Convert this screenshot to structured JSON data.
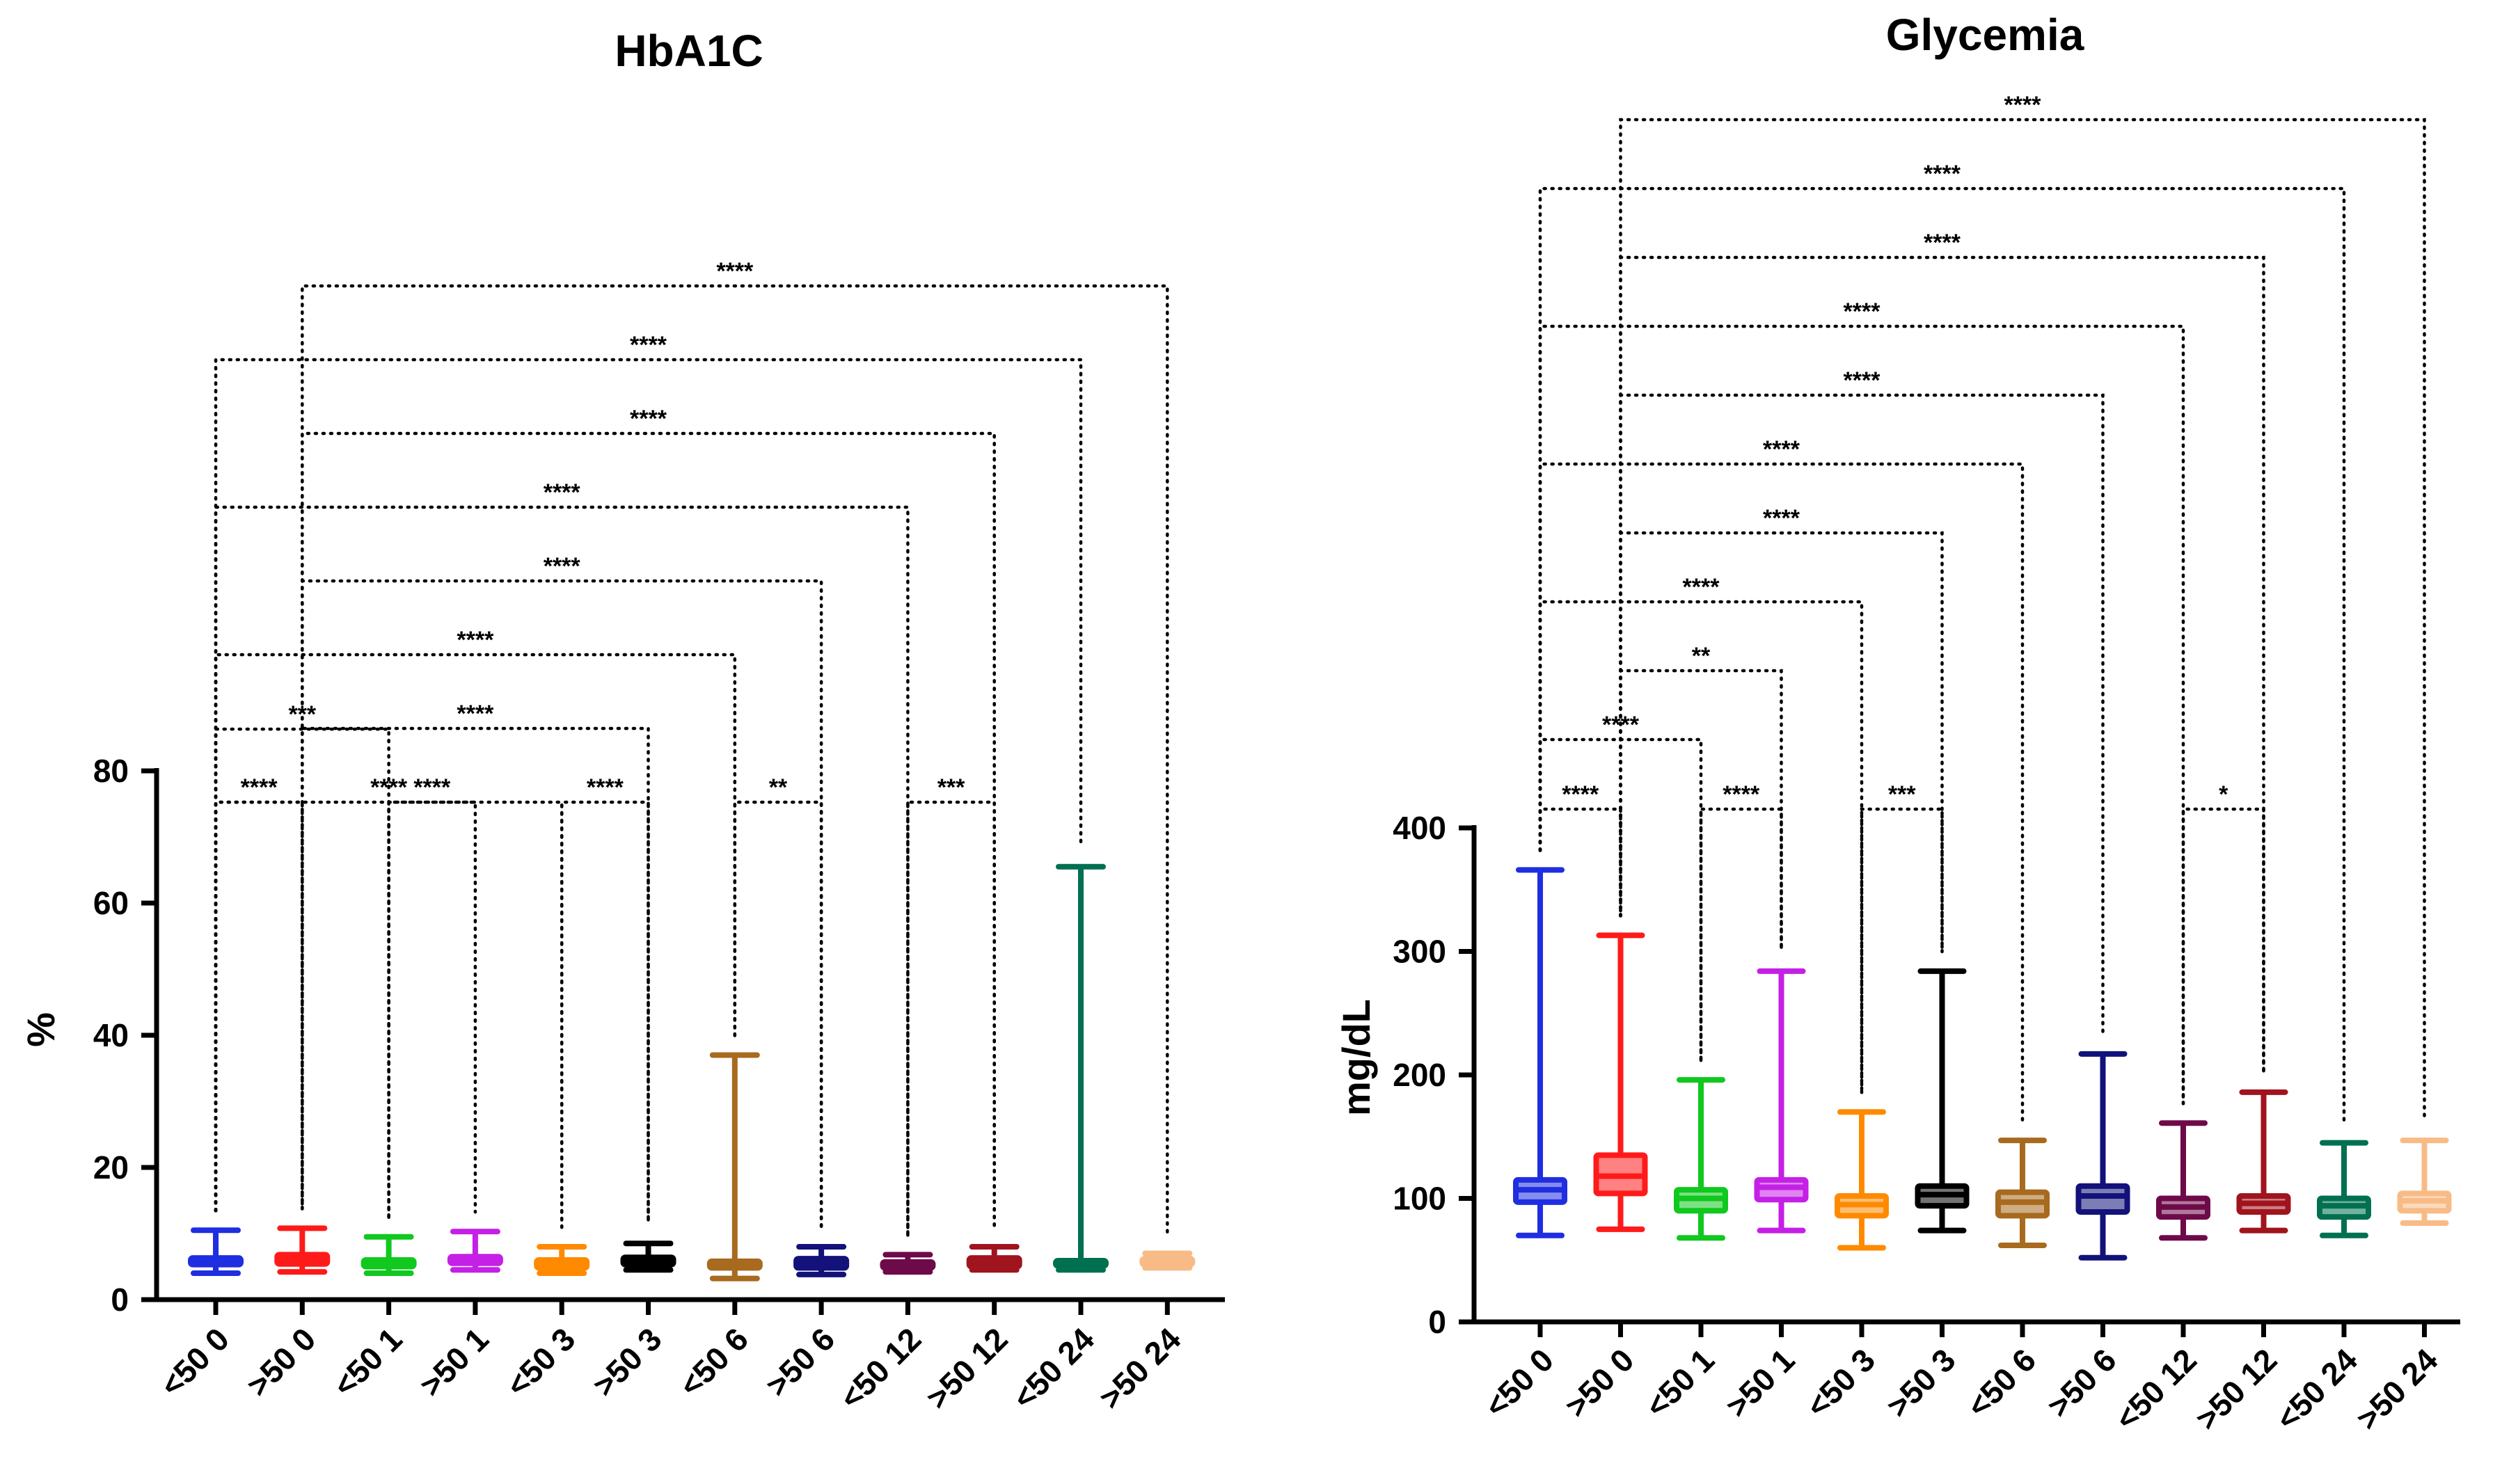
{
  "chart_data": [
    {
      "type": "boxplot",
      "title": "HbA1C",
      "ylabel": "%",
      "xlabel": "",
      "ylim": [
        0,
        80
      ],
      "yticks": [
        0,
        20,
        40,
        60,
        80
      ],
      "categories": [
        "<50 0",
        ">50 0",
        "<50 1",
        ">50 1",
        "<50 3",
        ">50 3",
        "<50 6",
        ">50 6",
        "<50 12",
        ">50 12",
        "<50 24",
        ">50 24"
      ],
      "colors": [
        "#1f2ee0",
        "#ff1a1a",
        "#10c81e",
        "#c420e6",
        "#ff8a00",
        "#000000",
        "#a86a1e",
        "#12127a",
        "#6e0a4a",
        "#a0141e",
        "#007050",
        "#f8bb86"
      ],
      "boxes": [
        {
          "min": 4.0,
          "q1": 5.3,
          "median": 5.8,
          "q3": 6.3,
          "max": 10.5
        },
        {
          "min": 4.2,
          "q1": 5.4,
          "median": 6.0,
          "q3": 6.8,
          "max": 10.8
        },
        {
          "min": 4.0,
          "q1": 5.0,
          "median": 5.4,
          "q3": 6.0,
          "max": 9.5
        },
        {
          "min": 4.5,
          "q1": 5.5,
          "median": 6.0,
          "q3": 6.5,
          "max": 10.3
        },
        {
          "min": 4.0,
          "q1": 4.8,
          "median": 5.3,
          "q3": 6.0,
          "max": 8.0
        },
        {
          "min": 4.5,
          "q1": 5.3,
          "median": 5.8,
          "q3": 6.4,
          "max": 8.5
        },
        {
          "min": 3.2,
          "q1": 4.8,
          "median": 5.3,
          "q3": 5.8,
          "max": 37.0
        },
        {
          "min": 3.8,
          "q1": 4.8,
          "median": 5.4,
          "q3": 6.2,
          "max": 8.0
        },
        {
          "min": 4.2,
          "q1": 4.8,
          "median": 5.1,
          "q3": 5.7,
          "max": 6.8
        },
        {
          "min": 4.5,
          "q1": 5.0,
          "median": 5.5,
          "q3": 6.3,
          "max": 8.0
        },
        {
          "min": 4.5,
          "q1": 5.1,
          "median": 5.4,
          "q3": 5.9,
          "max": 65.5
        },
        {
          "min": 4.8,
          "q1": 5.3,
          "median": 5.7,
          "q3": 6.2,
          "max": 7.0
        }
      ],
      "comparisons": [
        {
          "a": 0,
          "b": 1,
          "label": "****"
        },
        {
          "a": 2,
          "b": 3,
          "label": "****"
        },
        {
          "a": 4,
          "b": 5,
          "label": "****"
        },
        {
          "a": 6,
          "b": 7,
          "label": "**"
        },
        {
          "a": 8,
          "b": 9,
          "label": "***"
        },
        {
          "a": 0,
          "b": 2,
          "label": "***"
        },
        {
          "a": 0,
          "b": 4,
          "label": "****"
        },
        {
          "a": 1,
          "b": 5,
          "label": "****"
        },
        {
          "a": 0,
          "b": 6,
          "label": "****"
        },
        {
          "a": 1,
          "b": 7,
          "label": "****"
        },
        {
          "a": 0,
          "b": 8,
          "label": "****"
        },
        {
          "a": 1,
          "b": 9,
          "label": "****"
        },
        {
          "a": 0,
          "b": 10,
          "label": "****"
        },
        {
          "a": 1,
          "b": 11,
          "label": "****"
        }
      ]
    },
    {
      "type": "boxplot",
      "title": "Glycemia",
      "ylabel": "mg/dL",
      "xlabel": "",
      "ylim": [
        0,
        400
      ],
      "yticks": [
        0,
        100,
        200,
        300,
        400
      ],
      "categories": [
        "<50 0",
        ">50 0",
        "<50 1",
        ">50 1",
        "<50 3",
        ">50 3",
        "<50 6",
        ">50 6",
        "<50 12",
        ">50 12",
        "<50 24",
        ">50 24"
      ],
      "colors": [
        "#1f2ee0",
        "#ff1a1a",
        "#10c81e",
        "#c420e6",
        "#ff8a00",
        "#000000",
        "#a86a1e",
        "#12127a",
        "#6e0a4a",
        "#a0141e",
        "#007050",
        "#f8bb86"
      ],
      "boxes": [
        {
          "min": 70,
          "q1": 97,
          "median": 107,
          "q3": 115,
          "max": 366
        },
        {
          "min": 75,
          "q1": 104,
          "median": 118,
          "q3": 135,
          "max": 313
        },
        {
          "min": 68,
          "q1": 90,
          "median": 100,
          "q3": 107,
          "max": 196
        },
        {
          "min": 74,
          "q1": 99,
          "median": 109,
          "q3": 115,
          "max": 284
        },
        {
          "min": 60,
          "q1": 86,
          "median": 95,
          "q3": 102,
          "max": 170
        },
        {
          "min": 74,
          "q1": 94,
          "median": 103,
          "q3": 110,
          "max": 284
        },
        {
          "min": 62,
          "q1": 86,
          "median": 97,
          "q3": 105,
          "max": 147
        },
        {
          "min": 52,
          "q1": 89,
          "median": 102,
          "q3": 110,
          "max": 217
        },
        {
          "min": 68,
          "q1": 85,
          "median": 93,
          "q3": 100,
          "max": 161
        },
        {
          "min": 74,
          "q1": 89,
          "median": 96,
          "q3": 102,
          "max": 186
        },
        {
          "min": 70,
          "q1": 85,
          "median": 94,
          "q3": 100,
          "max": 145
        },
        {
          "min": 80,
          "q1": 90,
          "median": 98,
          "q3": 104,
          "max": 147
        }
      ],
      "comparisons": [
        {
          "a": 0,
          "b": 1,
          "label": "****"
        },
        {
          "a": 2,
          "b": 3,
          "label": "****"
        },
        {
          "a": 4,
          "b": 5,
          "label": "***"
        },
        {
          "a": 8,
          "b": 9,
          "label": "*"
        },
        {
          "a": 0,
          "b": 2,
          "label": "****"
        },
        {
          "a": 1,
          "b": 3,
          "label": "**"
        },
        {
          "a": 0,
          "b": 4,
          "label": "****"
        },
        {
          "a": 1,
          "b": 5,
          "label": "****"
        },
        {
          "a": 0,
          "b": 6,
          "label": "****"
        },
        {
          "a": 1,
          "b": 7,
          "label": "****"
        },
        {
          "a": 0,
          "b": 8,
          "label": "****"
        },
        {
          "a": 1,
          "b": 9,
          "label": "****"
        },
        {
          "a": 0,
          "b": 10,
          "label": "****"
        },
        {
          "a": 1,
          "b": 11,
          "label": "****"
        }
      ]
    }
  ]
}
